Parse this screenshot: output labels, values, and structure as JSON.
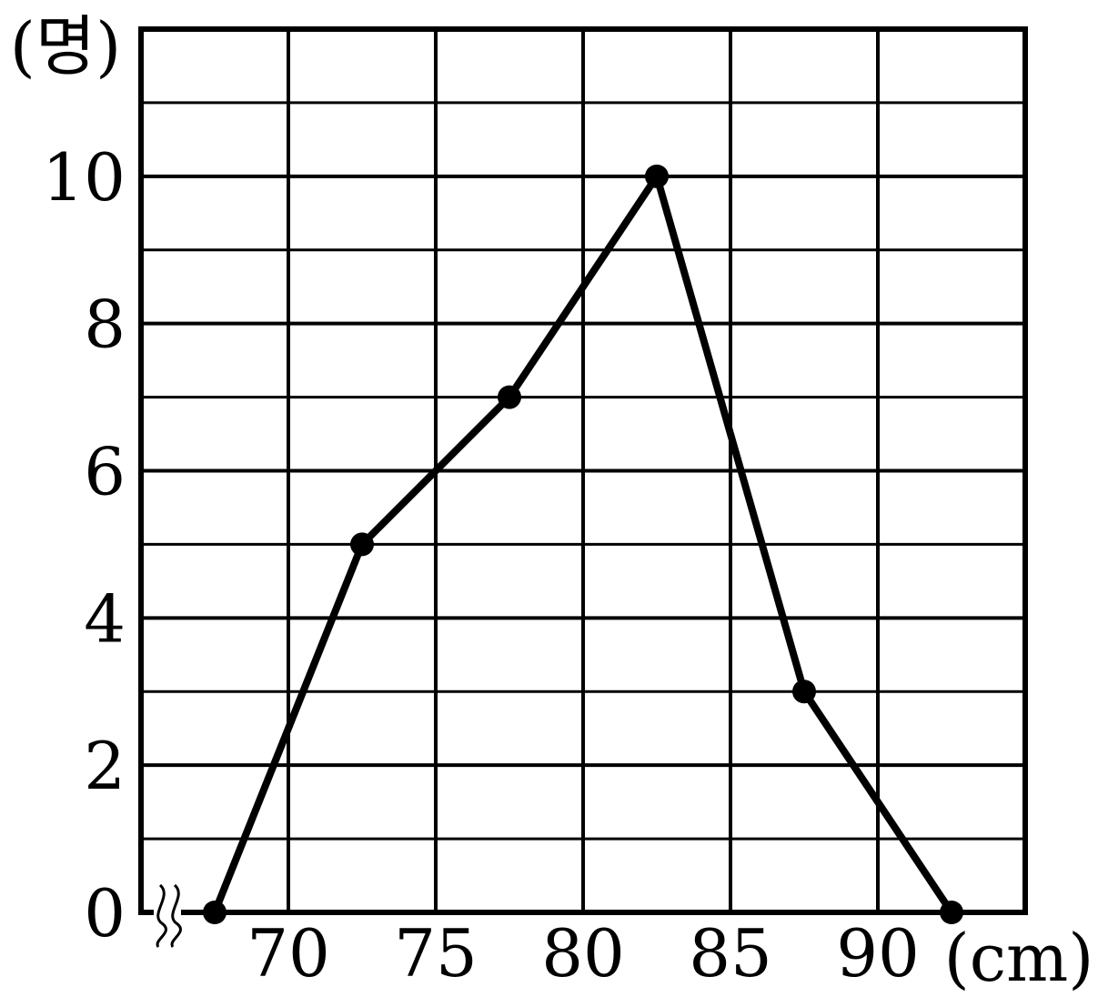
{
  "chart_data": {
    "type": "line",
    "title": "",
    "xlabel": "",
    "ylabel": "",
    "x_unit": "(cm)",
    "y_unit": "(명)",
    "x_axis_break": true,
    "xlim": [
      65,
      95
    ],
    "ylim": [
      0,
      12
    ],
    "x_ticks": [
      70,
      75,
      80,
      85,
      90
    ],
    "x_tick_labels": [
      "70",
      "75",
      "80",
      "85",
      "90"
    ],
    "y_ticks": [
      0,
      2,
      4,
      6,
      8,
      10
    ],
    "y_tick_labels": [
      "0",
      "2",
      "4",
      "6",
      "8",
      "10"
    ],
    "x_gridlines": [
      70,
      75,
      80,
      85,
      90,
      95
    ],
    "y_gridlines": [
      1,
      2,
      3,
      4,
      5,
      6,
      7,
      8,
      9,
      10,
      11,
      12
    ],
    "grid": true,
    "series": [
      {
        "x": [
          67.5,
          72.5,
          77.5,
          82.5,
          87.5,
          92.5
        ],
        "values": [
          0,
          5,
          7,
          10,
          3,
          0
        ]
      }
    ],
    "colors": {
      "line": "#000000",
      "grid": "#000000",
      "background": "#ffffff"
    }
  }
}
